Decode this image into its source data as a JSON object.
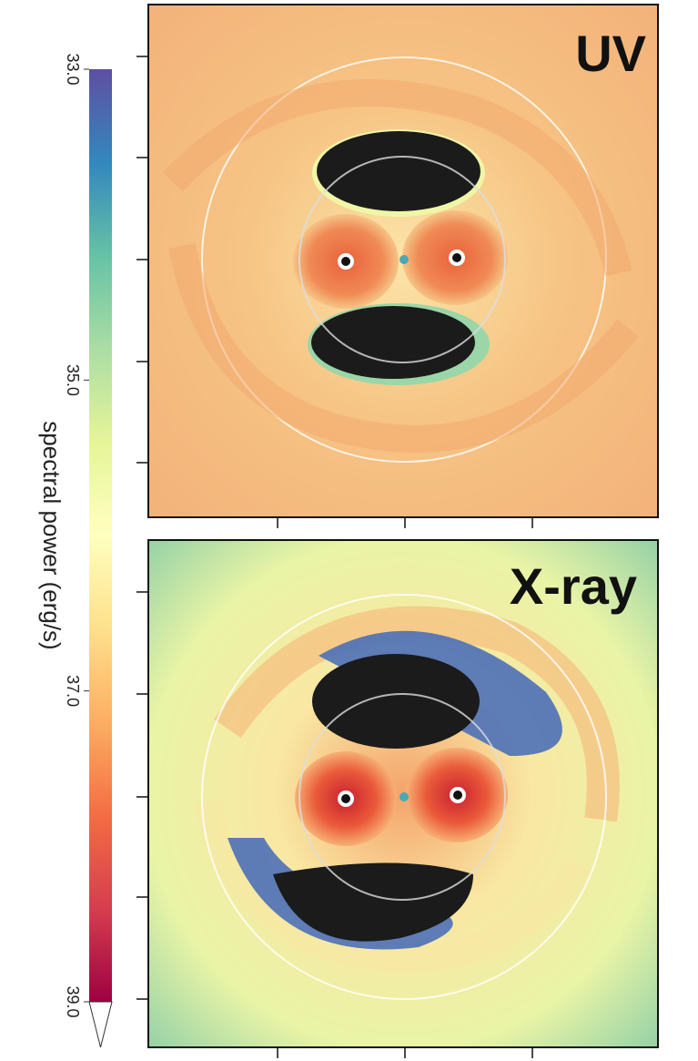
{
  "colorbar": {
    "label": "spectral power (erg/s)",
    "range": [
      33,
      39
    ],
    "ticks": [
      {
        "value": 33,
        "label": "33.0"
      },
      {
        "value": 35,
        "label": "35.0"
      },
      {
        "value": 37,
        "label": "37.0"
      },
      {
        "value": 39,
        "label": "39.0"
      }
    ],
    "colormap": [
      "#5e4fa2",
      "#3288bd",
      "#66c2a5",
      "#abdda4",
      "#e6f598",
      "#ffffbf",
      "#fee08b",
      "#fdae61",
      "#f46d43",
      "#d53e4f",
      "#9e0142"
    ]
  },
  "panels": [
    {
      "label": "UV"
    },
    {
      "label": "X-ray"
    }
  ]
}
